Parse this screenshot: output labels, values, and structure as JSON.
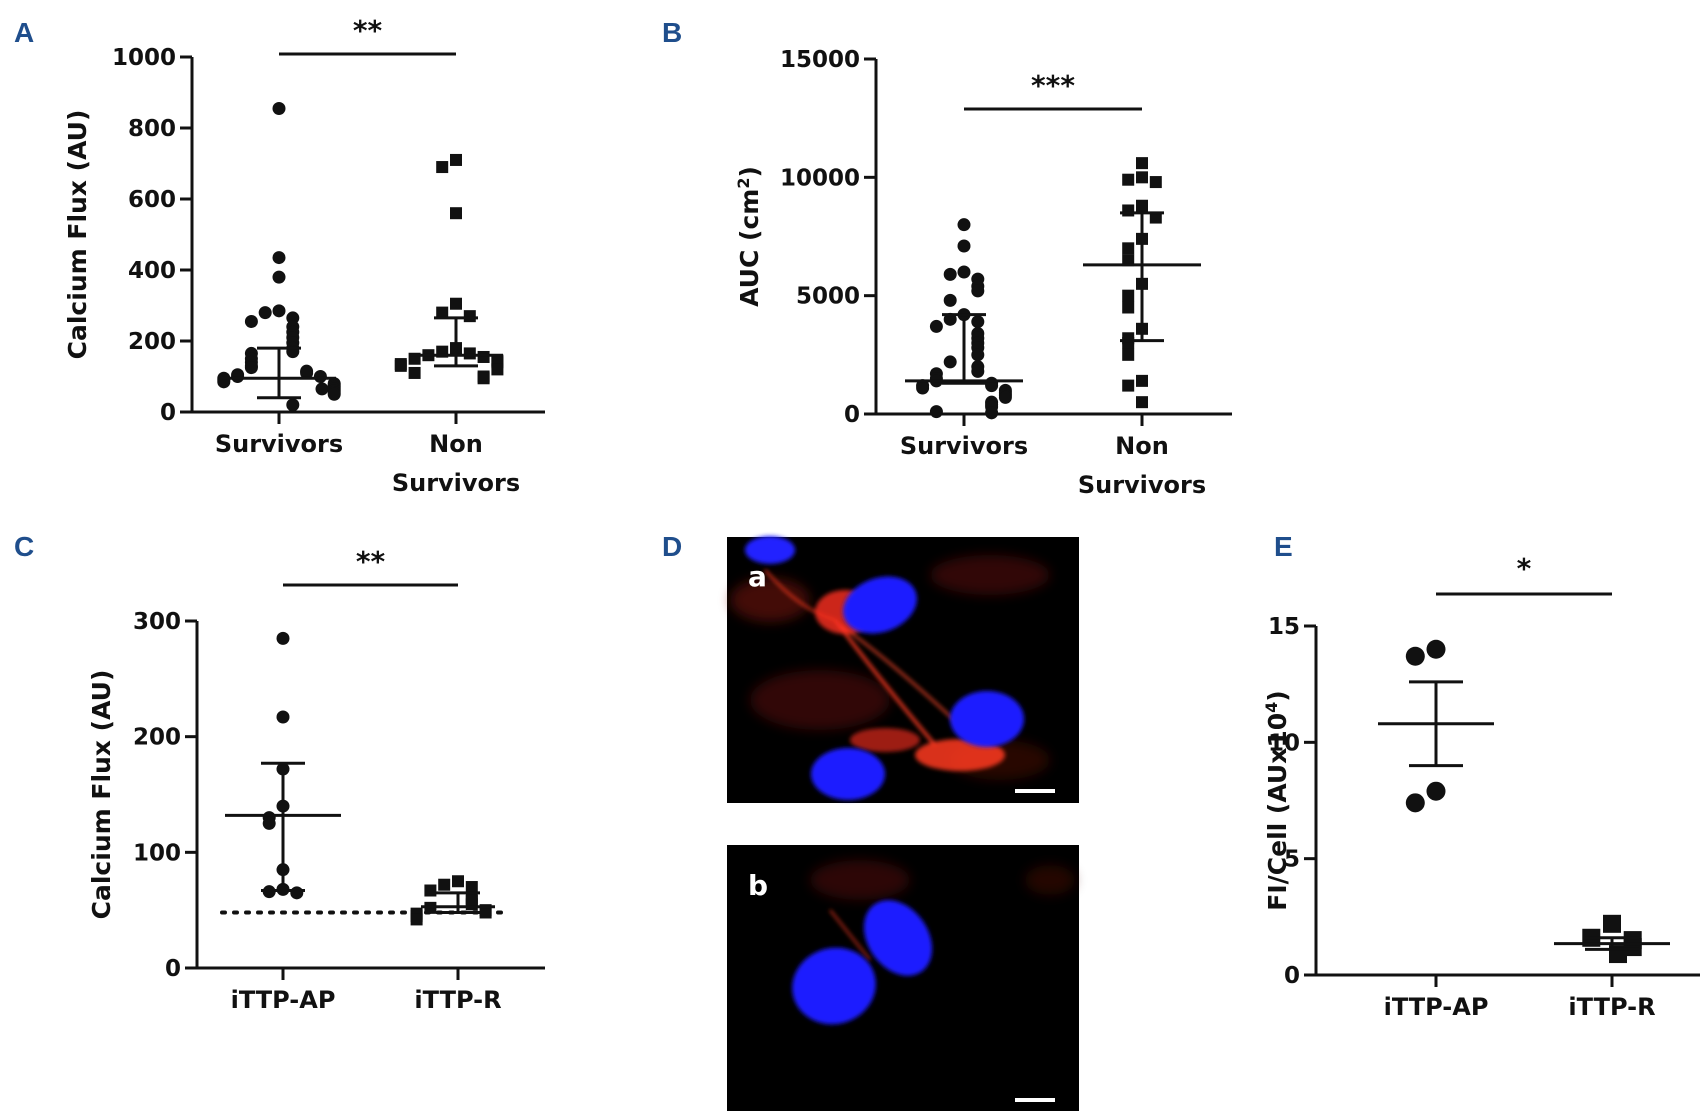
{
  "colors": {
    "panel_letter": "#1f4e8c",
    "ink": "#111111",
    "nucleus": "#1e1eff",
    "stain": "#ff2a1a",
    "background_image": "#000000"
  },
  "chart_data": [
    {
      "id": "A",
      "panel": "A",
      "type": "scatter",
      "ylabel": "Calcium Flux (AU)",
      "ylim": [
        0,
        1000
      ],
      "yticks": [
        0,
        200,
        400,
        600,
        800,
        1000
      ],
      "categories": [
        [
          "Survivors"
        ],
        [
          "Non",
          "Survivors"
        ]
      ],
      "groups": [
        {
          "marker": "circle",
          "values": [
            855,
            435,
            380,
            285,
            280,
            265,
            255,
            240,
            225,
            210,
            195,
            180,
            170,
            165,
            150,
            140,
            130,
            125,
            115,
            110,
            105,
            100,
            100,
            95,
            90,
            85,
            80,
            75,
            70,
            65,
            65,
            60,
            55,
            50,
            20
          ],
          "mean": 95,
          "err_low": 40,
          "err_high": 180
        },
        {
          "marker": "square",
          "values": [
            710,
            690,
            560,
            305,
            280,
            270,
            180,
            170,
            165,
            160,
            155,
            150,
            145,
            140,
            135,
            130,
            120,
            110,
            100,
            95
          ],
          "mean": 160,
          "err_low": 130,
          "err_high": 265
        }
      ],
      "significance": "**"
    },
    {
      "id": "B",
      "panel": "B",
      "type": "scatter",
      "ylabel": "AUC (cm",
      "ylabel_sup": "2",
      "ylabel_end": ")",
      "ylim": [
        0,
        15000
      ],
      "yticks": [
        0,
        5000,
        10000,
        15000
      ],
      "categories": [
        [
          "Survivors"
        ],
        [
          "Non",
          "Survivors"
        ]
      ],
      "groups": [
        {
          "marker": "circle",
          "values": [
            8000,
            7100,
            6000,
            5900,
            5700,
            5400,
            5200,
            4800,
            4200,
            4000,
            3900,
            3700,
            3400,
            3200,
            3000,
            2800,
            2500,
            2200,
            2000,
            1800,
            1700,
            1500,
            1400,
            1300,
            1200,
            1200,
            1100,
            1000,
            900,
            800,
            700,
            500,
            400,
            300,
            100,
            50
          ],
          "mean": 1400,
          "err_low": 1300,
          "err_high": 4200
        },
        {
          "marker": "square",
          "values": [
            10600,
            10000,
            9900,
            9800,
            8800,
            8600,
            8300,
            7400,
            7000,
            6500,
            5500,
            5000,
            4500,
            3600,
            3200,
            3000,
            2500,
            1400,
            1200,
            500
          ],
          "mean": 6300,
          "err_low": 3100,
          "err_high": 8500
        }
      ],
      "significance": "***"
    },
    {
      "id": "C",
      "panel": "C",
      "type": "scatter",
      "ylabel": "Calcium Flux (AU)",
      "ylim": [
        0,
        300
      ],
      "yticks": [
        0,
        100,
        200,
        300
      ],
      "categories": [
        [
          "iTTP-AP"
        ],
        [
          "iTTP-R"
        ]
      ],
      "groups": [
        {
          "marker": "circle",
          "values": [
            285,
            217,
            172,
            140,
            130,
            125,
            85,
            68,
            66,
            65
          ],
          "mean": 132,
          "err_low": 67,
          "err_high": 177
        },
        {
          "marker": "square",
          "values": [
            75,
            72,
            70,
            67,
            60,
            58,
            55,
            52,
            50,
            48,
            47,
            45,
            42
          ],
          "mean": 53,
          "err_low": 48,
          "err_high": 65
        }
      ],
      "reference_line": 48,
      "significance": "**"
    },
    {
      "id": "E",
      "panel": "E",
      "type": "scatter",
      "ylabel": "FI/Cell (AUx10",
      "ylabel_sup": "4",
      "ylabel_end": ")",
      "ylim": [
        0,
        15
      ],
      "yticks": [
        0,
        5,
        10,
        15
      ],
      "categories": [
        [
          "iTTP-AP"
        ],
        [
          "iTTP-R"
        ]
      ],
      "groups": [
        {
          "marker": "circle",
          "values": [
            14.0,
            13.7,
            7.9,
            7.4
          ],
          "mean": 10.8,
          "err_low": 9.0,
          "err_high": 12.6
        },
        {
          "marker": "square",
          "values": [
            2.2,
            1.6,
            1.5,
            1.2,
            0.9
          ],
          "mean": 1.35,
          "err_low": 1.1,
          "err_high": 1.6
        }
      ],
      "significance": "*"
    }
  ],
  "microscopy": {
    "panel": "D",
    "images": [
      {
        "label": "a"
      },
      {
        "label": "b"
      }
    ]
  }
}
